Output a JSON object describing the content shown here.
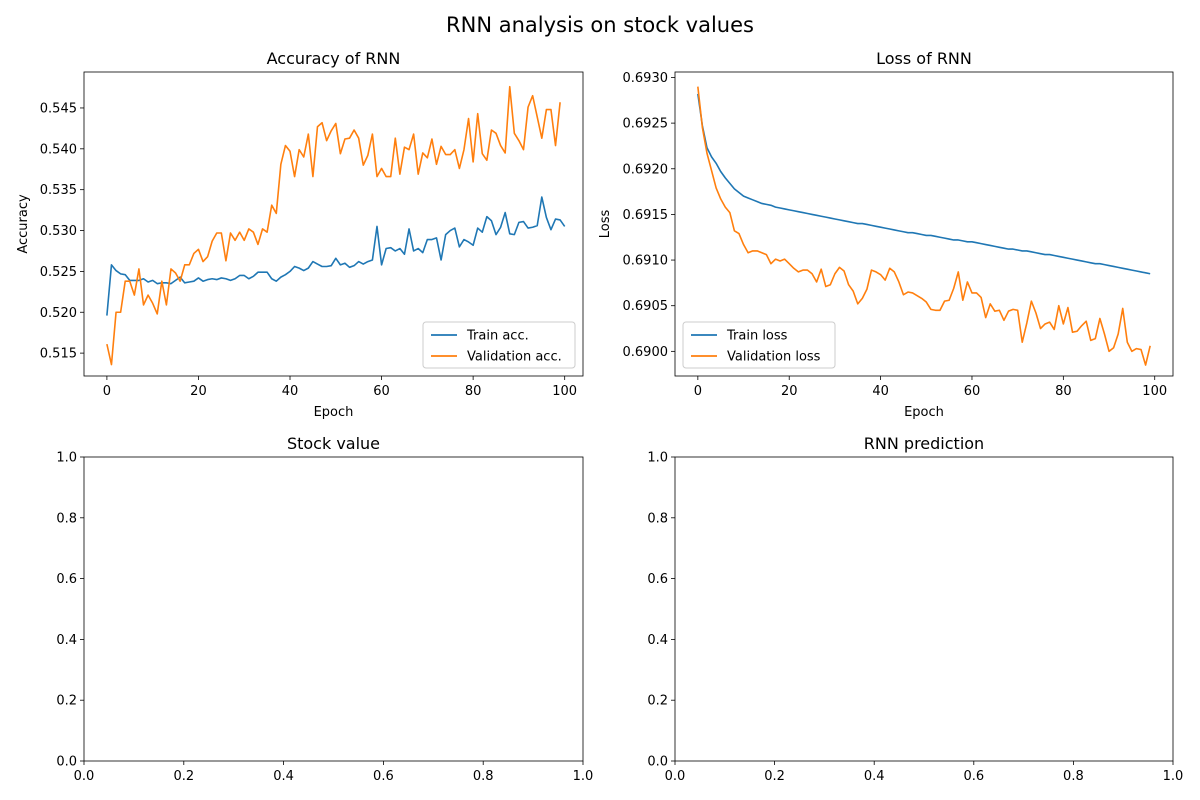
{
  "figure": {
    "suptitle": "RNN analysis on stock values"
  },
  "colors": {
    "series1": "#1f77b4",
    "series2": "#ff7f0e",
    "axis": "#000000",
    "legend_border": "#cccccc"
  },
  "chart_data": [
    {
      "id": "acc",
      "type": "line",
      "title": "Accuracy of RNN",
      "xlabel": "Epoch",
      "ylabel": "Accuracy",
      "xlim": [
        -5,
        104
      ],
      "ylim": [
        0.5122,
        0.5494
      ],
      "xticks": [
        0,
        20,
        40,
        60,
        80,
        100
      ],
      "xtick_labels": [
        "0",
        "20",
        "40",
        "60",
        "80",
        "100"
      ],
      "yticks": [
        0.515,
        0.52,
        0.525,
        0.53,
        0.535,
        0.54,
        0.545
      ],
      "ytick_labels": [
        "0.515",
        "0.520",
        "0.525",
        "0.530",
        "0.535",
        "0.540",
        "0.545"
      ],
      "legend": "lower-right",
      "grid": false,
      "series": [
        {
          "name": "Train acc.",
          "values": [
            0.5196,
            0.5258,
            0.5251,
            0.5247,
            0.5246,
            0.5239,
            0.5239,
            0.5239,
            0.5241,
            0.5237,
            0.5239,
            0.5235,
            0.5236,
            0.5236,
            0.5235,
            0.5239,
            0.5243,
            0.5236,
            0.5237,
            0.5238,
            0.5242,
            0.5238,
            0.524,
            0.5241,
            0.524,
            0.5242,
            0.5241,
            0.5239,
            0.5241,
            0.5245,
            0.5245,
            0.5241,
            0.5244,
            0.5249,
            0.5249,
            0.5249,
            0.5241,
            0.5238,
            0.5243,
            0.5246,
            0.525,
            0.5256,
            0.5254,
            0.5251,
            0.5254,
            0.5262,
            0.5259,
            0.5256,
            0.5256,
            0.5257,
            0.5266,
            0.5258,
            0.526,
            0.5255,
            0.5257,
            0.5262,
            0.5259,
            0.5262,
            0.5264,
            0.5305,
            0.5258,
            0.5278,
            0.5279,
            0.5275,
            0.5278,
            0.5271,
            0.5302,
            0.5275,
            0.5278,
            0.5273,
            0.5289,
            0.5289,
            0.5291,
            0.5264,
            0.5295,
            0.53,
            0.5303,
            0.528,
            0.5289,
            0.5286,
            0.5282,
            0.5303,
            0.5298,
            0.5317,
            0.5312,
            0.5295,
            0.5304,
            0.5322,
            0.5296,
            0.5295,
            0.531,
            0.5311,
            0.5303,
            0.5304,
            0.5306,
            0.5341,
            0.5316,
            0.5301,
            0.5314,
            0.5313,
            0.5305
          ]
        },
        {
          "name": "Validation acc.",
          "values": [
            0.5161,
            0.5136,
            0.52,
            0.52,
            0.5238,
            0.5238,
            0.5221,
            0.5253,
            0.5209,
            0.5221,
            0.5211,
            0.5198,
            0.5238,
            0.5209,
            0.5253,
            0.5248,
            0.5238,
            0.5258,
            0.5258,
            0.5272,
            0.5277,
            0.5262,
            0.5268,
            0.5287,
            0.5297,
            0.5297,
            0.5263,
            0.5297,
            0.5288,
            0.5298,
            0.5288,
            0.5302,
            0.5298,
            0.5283,
            0.5302,
            0.5298,
            0.5331,
            0.5321,
            0.5381,
            0.5404,
            0.5397,
            0.5366,
            0.5399,
            0.539,
            0.5418,
            0.5366,
            0.5427,
            0.5432,
            0.541,
            0.5422,
            0.5431,
            0.5394,
            0.5412,
            0.5413,
            0.5423,
            0.5413,
            0.538,
            0.5392,
            0.5418,
            0.5366,
            0.5376,
            0.5366,
            0.5366,
            0.5413,
            0.5369,
            0.5402,
            0.5399,
            0.5418,
            0.5369,
            0.5395,
            0.5389,
            0.5412,
            0.5381,
            0.5403,
            0.5393,
            0.5393,
            0.5399,
            0.5376,
            0.5399,
            0.5437,
            0.5384,
            0.5443,
            0.5394,
            0.5386,
            0.5423,
            0.5419,
            0.5404,
            0.5395,
            0.5476,
            0.5419,
            0.541,
            0.5399,
            0.5451,
            0.5465,
            0.5439,
            0.5413,
            0.5448,
            0.5448,
            0.5404,
            0.5457
          ]
        }
      ]
    },
    {
      "id": "loss",
      "type": "line",
      "title": "Loss of RNN",
      "xlabel": "Epoch",
      "ylabel": "Loss",
      "xlim": [
        -5,
        104
      ],
      "ylim": [
        0.68973,
        0.69306
      ],
      "xticks": [
        0,
        20,
        40,
        60,
        80,
        100
      ],
      "xtick_labels": [
        "0",
        "20",
        "40",
        "60",
        "80",
        "100"
      ],
      "yticks": [
        0.69,
        0.6905,
        0.691,
        0.6915,
        0.692,
        0.6925,
        0.693
      ],
      "ytick_labels": [
        "0.6900",
        "0.6905",
        "0.6910",
        "0.6915",
        "0.6920",
        "0.6925",
        "0.6930"
      ],
      "legend": "lower-left",
      "grid": false,
      "series": [
        {
          "name": "Train loss",
          "values": [
            0.69282,
            0.69247,
            0.69223,
            0.69213,
            0.69206,
            0.69197,
            0.6919,
            0.69184,
            0.69178,
            0.69174,
            0.6917,
            0.69168,
            0.69166,
            0.69164,
            0.69162,
            0.69161,
            0.6916,
            0.69158,
            0.69157,
            0.69156,
            0.69155,
            0.69154,
            0.69153,
            0.69152,
            0.69151,
            0.6915,
            0.69149,
            0.69148,
            0.69147,
            0.69146,
            0.69145,
            0.69144,
            0.69143,
            0.69142,
            0.69141,
            0.6914,
            0.6914,
            0.69139,
            0.69138,
            0.69137,
            0.69136,
            0.69135,
            0.69134,
            0.69133,
            0.69132,
            0.69131,
            0.6913,
            0.6913,
            0.69129,
            0.69128,
            0.69127,
            0.69127,
            0.69126,
            0.69125,
            0.69124,
            0.69123,
            0.69122,
            0.69122,
            0.69121,
            0.6912,
            0.6912,
            0.69119,
            0.69118,
            0.69117,
            0.69116,
            0.69115,
            0.69114,
            0.69113,
            0.69112,
            0.69112,
            0.69111,
            0.6911,
            0.6911,
            0.69109,
            0.69108,
            0.69107,
            0.69106,
            0.69106,
            0.69105,
            0.69104,
            0.69103,
            0.69102,
            0.69101,
            0.691,
            0.69099,
            0.69098,
            0.69097,
            0.69096,
            0.69096,
            0.69095,
            0.69094,
            0.69093,
            0.69092,
            0.69091,
            0.6909,
            0.69089,
            0.69088,
            0.69087,
            0.69086,
            0.69085
          ]
        },
        {
          "name": "Validation loss",
          "values": [
            0.6929,
            0.69245,
            0.69217,
            0.69198,
            0.69179,
            0.69167,
            0.69158,
            0.69152,
            0.69132,
            0.69129,
            0.69117,
            0.69108,
            0.6911,
            0.6911,
            0.69108,
            0.69106,
            0.69096,
            0.69101,
            0.69099,
            0.69101,
            0.69096,
            0.69091,
            0.69087,
            0.69089,
            0.69089,
            0.69085,
            0.69076,
            0.6909,
            0.69071,
            0.69073,
            0.69085,
            0.69092,
            0.69088,
            0.69073,
            0.69066,
            0.69052,
            0.69058,
            0.69068,
            0.69089,
            0.69087,
            0.69084,
            0.69078,
            0.69091,
            0.69087,
            0.69076,
            0.69062,
            0.69065,
            0.69064,
            0.69061,
            0.69058,
            0.69054,
            0.69046,
            0.69045,
            0.69045,
            0.69055,
            0.69056,
            0.69069,
            0.69087,
            0.69056,
            0.69076,
            0.69064,
            0.69064,
            0.69059,
            0.69037,
            0.69052,
            0.69044,
            0.69045,
            0.69034,
            0.69044,
            0.69046,
            0.69045,
            0.6901,
            0.69031,
            0.69055,
            0.69042,
            0.69025,
            0.6903,
            0.69032,
            0.69024,
            0.6905,
            0.6903,
            0.69048,
            0.69021,
            0.69022,
            0.69028,
            0.69033,
            0.69012,
            0.69014,
            0.69036,
            0.69019,
            0.69,
            0.69004,
            0.69019,
            0.69047,
            0.6901,
            0.69,
            0.69003,
            0.69002,
            0.68985,
            0.69006
          ]
        }
      ]
    },
    {
      "id": "stock",
      "type": "line",
      "title": "Stock value",
      "xlabel": "",
      "ylabel": "",
      "xlim": [
        0,
        1
      ],
      "ylim": [
        0,
        1
      ],
      "xticks": [
        0,
        0.2,
        0.4,
        0.6,
        0.8,
        1.0
      ],
      "xtick_labels": [
        "0.0",
        "0.2",
        "0.4",
        "0.6",
        "0.8",
        "1.0"
      ],
      "yticks": [
        0,
        0.2,
        0.4,
        0.6,
        0.8,
        1.0
      ],
      "ytick_labels": [
        "0.0",
        "0.2",
        "0.4",
        "0.6",
        "0.8",
        "1.0"
      ],
      "grid": false,
      "series": []
    },
    {
      "id": "pred",
      "type": "line",
      "title": "RNN prediction",
      "xlabel": "",
      "ylabel": "",
      "xlim": [
        0,
        1
      ],
      "ylim": [
        0,
        1
      ],
      "xticks": [
        0,
        0.2,
        0.4,
        0.6,
        0.8,
        1.0
      ],
      "xtick_labels": [
        "0.0",
        "0.2",
        "0.4",
        "0.6",
        "0.8",
        "1.0"
      ],
      "yticks": [
        0,
        0.2,
        0.4,
        0.6,
        0.8,
        1.0
      ],
      "ytick_labels": [
        "0.0",
        "0.2",
        "0.4",
        "0.6",
        "0.8",
        "1.0"
      ],
      "grid": false,
      "series": []
    }
  ]
}
